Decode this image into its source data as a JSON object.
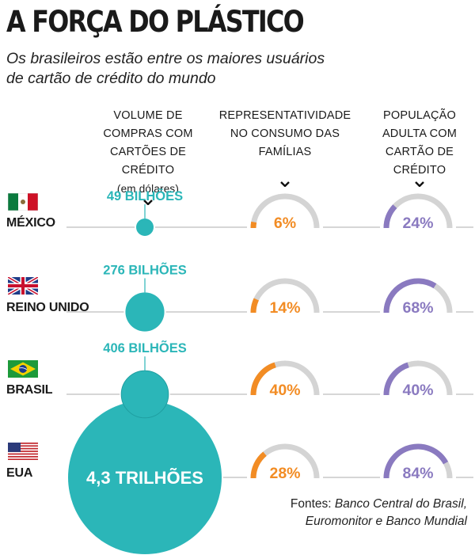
{
  "title": "A FORÇA DO PLÁSTICO",
  "subtitle": [
    "Os brasileiros estão entre os maiores usuários",
    "de cartão de crédito do mundo"
  ],
  "columns": {
    "volume": [
      "VOLUME DE",
      "COMPRAS COM",
      "CARTÕES DE CRÉDITO"
    ],
    "volume_note": "(em dólares)",
    "consumption": [
      "REPRESENTATIVIDADE",
      "NO CONSUMO DAS",
      "FAMÍLIAS"
    ],
    "population": [
      "POPULAÇÃO",
      "ADULTA COM",
      "CARTÃO DE",
      "CRÉDITO"
    ]
  },
  "source": {
    "prefix": "Fontes: ",
    "line1": "Banco Central do Brasil,",
    "line2": "Euromonitor e Banco Mundial"
  },
  "colors": {
    "teal": "#2bb6b8",
    "orange": "#f28c24",
    "purple": "#8a7ac0",
    "gauge_track": "#d4d4d4",
    "rule": "#bdbdbd"
  },
  "chart_data": {
    "type": "bubble-and-gauge table",
    "categories": [
      "MÉXICO",
      "REINO UNIDO",
      "BRASIL",
      "EUA"
    ],
    "flags": [
      "mexico-flag",
      "uk-flag",
      "brazil-flag",
      "usa-flag"
    ],
    "volume_usd": [
      49000000000,
      276000000000,
      406000000000,
      4300000000000
    ],
    "volume_labels": [
      "49 BILHÕES",
      "276 BILHÕES",
      "406 BILHÕES",
      "4,3 TRILHÕES"
    ],
    "consumption_share_pct": [
      6,
      14,
      40,
      28
    ],
    "adult_population_with_card_pct": [
      24,
      68,
      40,
      84
    ]
  }
}
